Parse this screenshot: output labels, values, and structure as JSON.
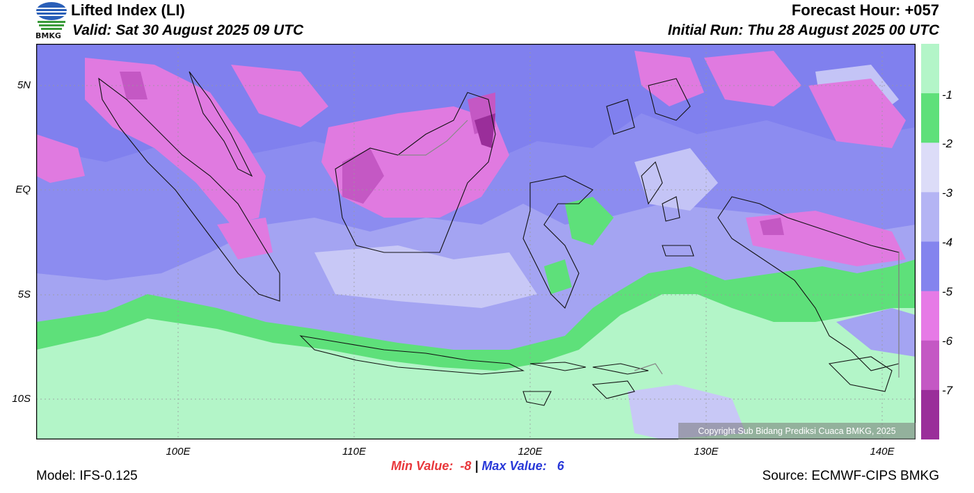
{
  "header": {
    "logo_text": "BMKG",
    "title": "Lifted Index (LI)",
    "valid": "Valid: Sat 30 August 2025 09 UTC",
    "forecast_hour": "Forecast Hour: +057",
    "initial_run": "Initial Run: Thu 28 August 2025 00 UTC"
  },
  "map": {
    "lat_labels": [
      "5N",
      "EQ",
      "5S",
      "10S"
    ],
    "lon_labels": [
      "100E",
      "110E",
      "120E",
      "130E",
      "140E"
    ],
    "copyright": "Copyright Sub Bidang Prediksi Cuaca BMKG, 2025"
  },
  "colorbar": {
    "labels": [
      "-1",
      "-2",
      "-3",
      "-4",
      "-5",
      "-6",
      "-7"
    ],
    "colors": [
      "#b3f5c8",
      "#5ee07a",
      "#dcdcf8",
      "#b4b4f4",
      "#8484ee",
      "#e67ae6",
      "#c458c4",
      "#9a2e9a"
    ]
  },
  "footer": {
    "model": "Model: IFS-0.125",
    "min_label": "Min Value:  -8",
    "separator": "|",
    "max_label": "Max Value:   6",
    "source": "Source: ECMWF-CIPS BMKG"
  }
}
